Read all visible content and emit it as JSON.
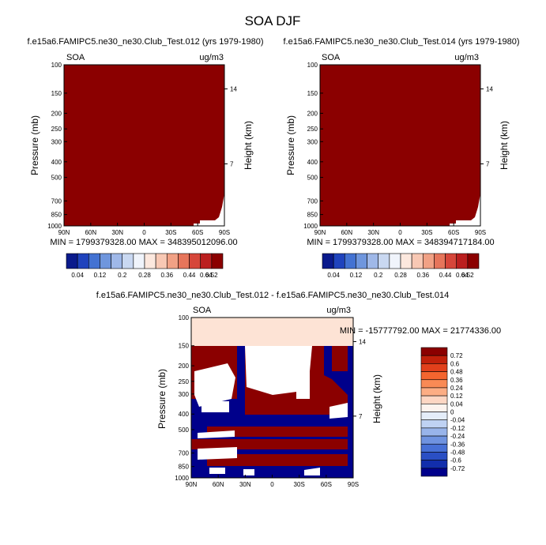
{
  "title": "SOA DJF",
  "colors": {
    "dark_red": "#8b0000",
    "diff_fill": "#fde3d5",
    "navy": "#00008b"
  },
  "chart_data": [
    {
      "type": "heatmap",
      "title": "f.e15a6.FAMIPC5.ne30_ne30.Club_Test.012 (yrs 1979-1980)",
      "left_label": "SOA",
      "right_label": "ug/m3",
      "ylabel": "Pressure (mb)",
      "ylabel_right": "Height (km)",
      "x_ticks": [
        "90N",
        "60N",
        "30N",
        "0",
        "30S",
        "60S",
        "90S"
      ],
      "y_ticks": [
        "100",
        "150",
        "200",
        "250",
        "300",
        "400",
        "500",
        "700",
        "850",
        "1000"
      ],
      "height_ticks": [
        "14",
        "7"
      ],
      "min_max": "MIN = 1799379328.00   MAX = 348395012096.00",
      "colorbar_labels": [
        "0.04",
        "0.12",
        "0.2",
        "0.28",
        "0.36",
        "0.44",
        "0.52",
        "0.64"
      ]
    },
    {
      "type": "heatmap",
      "title": "f.e15a6.FAMIPC5.ne30_ne30.Club_Test.014 (yrs 1979-1980)",
      "left_label": "SOA",
      "right_label": "ug/m3",
      "ylabel": "Pressure (mb)",
      "ylabel_right": "Height (km)",
      "x_ticks": [
        "90N",
        "60N",
        "30N",
        "0",
        "30S",
        "60S",
        "90S"
      ],
      "y_ticks": [
        "100",
        "150",
        "200",
        "250",
        "300",
        "400",
        "500",
        "700",
        "850",
        "1000"
      ],
      "height_ticks": [
        "14",
        "7"
      ],
      "min_max": "MIN = 1799379328.00   MAX = 348394717184.00",
      "colorbar_labels": [
        "0.04",
        "0.12",
        "0.2",
        "0.28",
        "0.36",
        "0.44",
        "0.52",
        "0.64"
      ]
    },
    {
      "type": "heatmap",
      "title": "f.e15a6.FAMIPC5.ne30_ne30.Club_Test.012 - f.e15a6.FAMIPC5.ne30_ne30.Club_Test.014",
      "left_label": "SOA",
      "right_label": "ug/m3",
      "ylabel": "Pressure (mb)",
      "ylabel_right": "Height (km)",
      "x_ticks": [
        "90N",
        "60N",
        "30N",
        "0",
        "30S",
        "60S",
        "90S"
      ],
      "y_ticks": [
        "100",
        "150",
        "200",
        "250",
        "300",
        "400",
        "500",
        "700",
        "850",
        "1000"
      ],
      "height_ticks": [
        "14",
        "7"
      ],
      "min_max": "MIN = -15777792.00   MAX = 21774336.00",
      "colorbar_labels": [
        "0.72",
        "0.6",
        "0.48",
        "0.36",
        "0.24",
        "0.12",
        "0.04",
        "0",
        "-0.04",
        "-0.12",
        "-0.24",
        "-0.36",
        "-0.48",
        "-0.6",
        "-0.72"
      ]
    }
  ]
}
